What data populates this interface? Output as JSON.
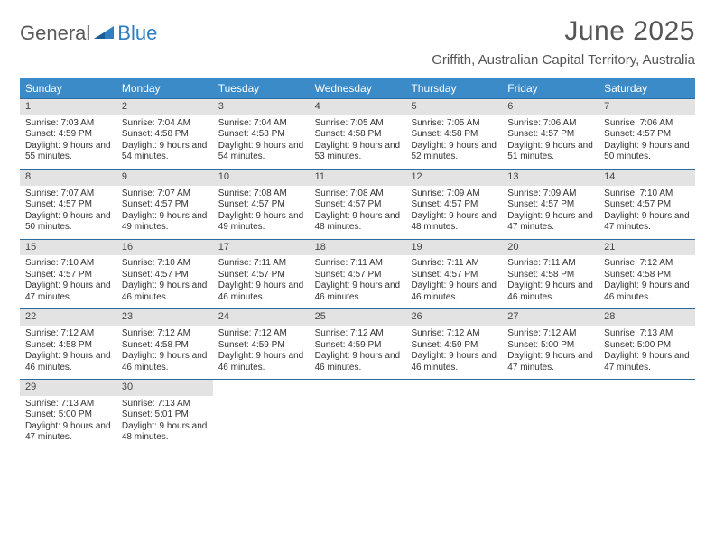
{
  "logo": {
    "word1": "General",
    "word2": "Blue"
  },
  "title": "June 2025",
  "location": "Griffith, Australian Capital Territory, Australia",
  "colors": {
    "header_bg": "#3b8bc9",
    "header_text": "#ffffff",
    "week_divider": "#2d6aa0",
    "daynum_bg": "#e3e3e3",
    "body_text": "#333333",
    "title_text": "#555555",
    "logo_gray": "#5a5a5a",
    "logo_blue": "#2f7ec1"
  },
  "typography": {
    "title_fontsize": 30,
    "location_fontsize": 15,
    "dow_fontsize": 12,
    "daynum_fontsize": 11,
    "body_fontsize": 10
  },
  "days_of_week": [
    "Sunday",
    "Monday",
    "Tuesday",
    "Wednesday",
    "Thursday",
    "Friday",
    "Saturday"
  ],
  "weeks": [
    [
      {
        "n": 1,
        "sunrise": "7:03 AM",
        "sunset": "4:59 PM",
        "daylight": "9 hours and 55 minutes."
      },
      {
        "n": 2,
        "sunrise": "7:04 AM",
        "sunset": "4:58 PM",
        "daylight": "9 hours and 54 minutes."
      },
      {
        "n": 3,
        "sunrise": "7:04 AM",
        "sunset": "4:58 PM",
        "daylight": "9 hours and 54 minutes."
      },
      {
        "n": 4,
        "sunrise": "7:05 AM",
        "sunset": "4:58 PM",
        "daylight": "9 hours and 53 minutes."
      },
      {
        "n": 5,
        "sunrise": "7:05 AM",
        "sunset": "4:58 PM",
        "daylight": "9 hours and 52 minutes."
      },
      {
        "n": 6,
        "sunrise": "7:06 AM",
        "sunset": "4:57 PM",
        "daylight": "9 hours and 51 minutes."
      },
      {
        "n": 7,
        "sunrise": "7:06 AM",
        "sunset": "4:57 PM",
        "daylight": "9 hours and 50 minutes."
      }
    ],
    [
      {
        "n": 8,
        "sunrise": "7:07 AM",
        "sunset": "4:57 PM",
        "daylight": "9 hours and 50 minutes."
      },
      {
        "n": 9,
        "sunrise": "7:07 AM",
        "sunset": "4:57 PM",
        "daylight": "9 hours and 49 minutes."
      },
      {
        "n": 10,
        "sunrise": "7:08 AM",
        "sunset": "4:57 PM",
        "daylight": "9 hours and 49 minutes."
      },
      {
        "n": 11,
        "sunrise": "7:08 AM",
        "sunset": "4:57 PM",
        "daylight": "9 hours and 48 minutes."
      },
      {
        "n": 12,
        "sunrise": "7:09 AM",
        "sunset": "4:57 PM",
        "daylight": "9 hours and 48 minutes."
      },
      {
        "n": 13,
        "sunrise": "7:09 AM",
        "sunset": "4:57 PM",
        "daylight": "9 hours and 47 minutes."
      },
      {
        "n": 14,
        "sunrise": "7:10 AM",
        "sunset": "4:57 PM",
        "daylight": "9 hours and 47 minutes."
      }
    ],
    [
      {
        "n": 15,
        "sunrise": "7:10 AM",
        "sunset": "4:57 PM",
        "daylight": "9 hours and 47 minutes."
      },
      {
        "n": 16,
        "sunrise": "7:10 AM",
        "sunset": "4:57 PM",
        "daylight": "9 hours and 46 minutes."
      },
      {
        "n": 17,
        "sunrise": "7:11 AM",
        "sunset": "4:57 PM",
        "daylight": "9 hours and 46 minutes."
      },
      {
        "n": 18,
        "sunrise": "7:11 AM",
        "sunset": "4:57 PM",
        "daylight": "9 hours and 46 minutes."
      },
      {
        "n": 19,
        "sunrise": "7:11 AM",
        "sunset": "4:57 PM",
        "daylight": "9 hours and 46 minutes."
      },
      {
        "n": 20,
        "sunrise": "7:11 AM",
        "sunset": "4:58 PM",
        "daylight": "9 hours and 46 minutes."
      },
      {
        "n": 21,
        "sunrise": "7:12 AM",
        "sunset": "4:58 PM",
        "daylight": "9 hours and 46 minutes."
      }
    ],
    [
      {
        "n": 22,
        "sunrise": "7:12 AM",
        "sunset": "4:58 PM",
        "daylight": "9 hours and 46 minutes."
      },
      {
        "n": 23,
        "sunrise": "7:12 AM",
        "sunset": "4:58 PM",
        "daylight": "9 hours and 46 minutes."
      },
      {
        "n": 24,
        "sunrise": "7:12 AM",
        "sunset": "4:59 PM",
        "daylight": "9 hours and 46 minutes."
      },
      {
        "n": 25,
        "sunrise": "7:12 AM",
        "sunset": "4:59 PM",
        "daylight": "9 hours and 46 minutes."
      },
      {
        "n": 26,
        "sunrise": "7:12 AM",
        "sunset": "4:59 PM",
        "daylight": "9 hours and 46 minutes."
      },
      {
        "n": 27,
        "sunrise": "7:12 AM",
        "sunset": "5:00 PM",
        "daylight": "9 hours and 47 minutes."
      },
      {
        "n": 28,
        "sunrise": "7:13 AM",
        "sunset": "5:00 PM",
        "daylight": "9 hours and 47 minutes."
      }
    ],
    [
      {
        "n": 29,
        "sunrise": "7:13 AM",
        "sunset": "5:00 PM",
        "daylight": "9 hours and 47 minutes."
      },
      {
        "n": 30,
        "sunrise": "7:13 AM",
        "sunset": "5:01 PM",
        "daylight": "9 hours and 48 minutes."
      },
      null,
      null,
      null,
      null,
      null
    ]
  ],
  "labels": {
    "sunrise": "Sunrise:",
    "sunset": "Sunset:",
    "daylight": "Daylight:"
  }
}
